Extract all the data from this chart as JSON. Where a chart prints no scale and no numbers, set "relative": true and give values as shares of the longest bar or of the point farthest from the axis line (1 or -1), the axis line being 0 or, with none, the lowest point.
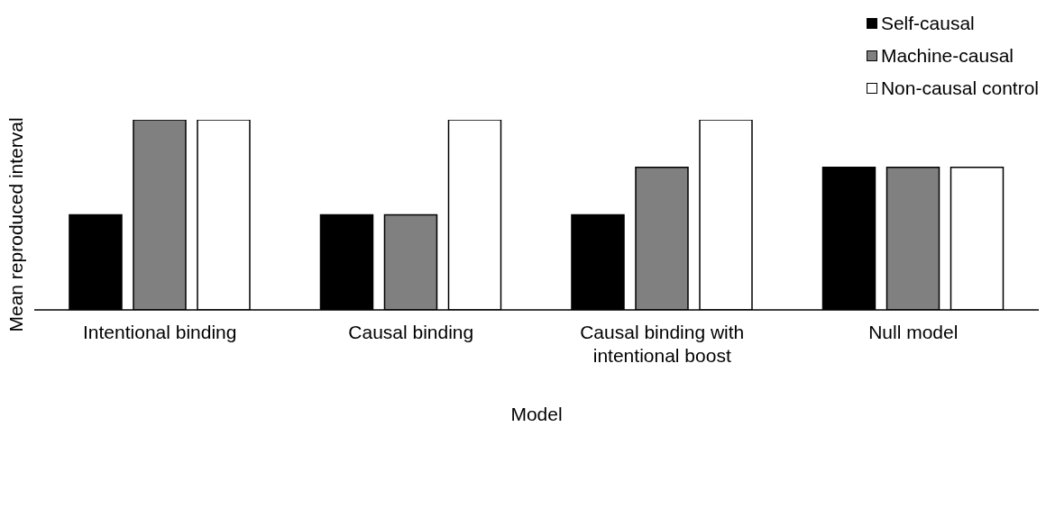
{
  "chart_data": {
    "type": "bar",
    "relative": true,
    "xlabel": "Model",
    "ylabel": "Mean reproduced interval",
    "categories": [
      "Intentional binding",
      "Causal binding",
      "Causal binding with intentional boost",
      "Null model"
    ],
    "series": [
      {
        "name": "Self-causal",
        "color": "#000000",
        "values": [
          0.5,
          0.5,
          0.5,
          0.75
        ]
      },
      {
        "name": "Machine-causal",
        "color": "#808080",
        "values": [
          1,
          0.5,
          0.75,
          0.75
        ]
      },
      {
        "name": "Non-causal control",
        "color": "#ffffff",
        "values": [
          1,
          1,
          1,
          0.75
        ]
      }
    ],
    "legend": "top right",
    "grid": false
  }
}
